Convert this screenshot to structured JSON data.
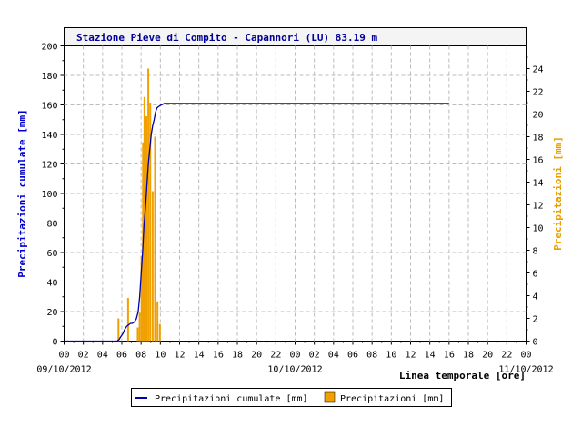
{
  "chart_data": {
    "type": "bar",
    "title": "Stazione Pieve di Compito - Capannori (LU) 83.19 m",
    "xlabel": "Linea temporale [ore]",
    "ylabel_left": "Precipitazioni cumulate [mm]",
    "ylabel_right": "Precipitazioni [mm]",
    "ylim_left": [
      0,
      200
    ],
    "ylim_right": [
      0,
      26
    ],
    "yticks_left": [
      "0",
      "20",
      "40",
      "60",
      "80",
      "100",
      "120",
      "140",
      "160",
      "180",
      "200"
    ],
    "yticks_right": [
      "0",
      "2",
      "4",
      "6",
      "8",
      "10",
      "12",
      "14",
      "16",
      "18",
      "20",
      "22",
      "24"
    ],
    "x_hours_range": [
      0,
      48
    ],
    "xtick_labels": [
      "00",
      "02",
      "04",
      "06",
      "08",
      "10",
      "12",
      "14",
      "16",
      "18",
      "20",
      "22",
      "00",
      "02",
      "04",
      "06",
      "08",
      "10",
      "12",
      "14",
      "16",
      "18",
      "20",
      "22",
      "00"
    ],
    "date_labels": [
      {
        "hour": 0,
        "text": "09/10/2012"
      },
      {
        "hour": 24,
        "text": "10/10/2012"
      },
      {
        "hour": 48,
        "text": "11/10/2012"
      }
    ],
    "grid": true,
    "legend_position": "bottom",
    "series": [
      {
        "name": "Precipitazioni cumulate [mm]",
        "kind": "line",
        "axis": "left",
        "color": "#0000aa",
        "points": [
          [
            0,
            0
          ],
          [
            5.5,
            0
          ],
          [
            5.7,
            1
          ],
          [
            5.9,
            3
          ],
          [
            6.1,
            5
          ],
          [
            6.3,
            8
          ],
          [
            6.5,
            10
          ],
          [
            6.7,
            11
          ],
          [
            6.9,
            12
          ],
          [
            7.1,
            12
          ],
          [
            7.3,
            13
          ],
          [
            7.5,
            15
          ],
          [
            7.7,
            20
          ],
          [
            7.85,
            30
          ],
          [
            8.0,
            45
          ],
          [
            8.15,
            60
          ],
          [
            8.3,
            78
          ],
          [
            8.45,
            90
          ],
          [
            8.6,
            105
          ],
          [
            8.75,
            120
          ],
          [
            8.9,
            130
          ],
          [
            9.05,
            140
          ],
          [
            9.2,
            146
          ],
          [
            9.35,
            150
          ],
          [
            9.5,
            155
          ],
          [
            9.65,
            158
          ],
          [
            9.85,
            159
          ],
          [
            10.1,
            160
          ],
          [
            10.4,
            161
          ],
          [
            11,
            161
          ],
          [
            40,
            161
          ]
        ]
      },
      {
        "name": "Precipitazioni [mm]",
        "kind": "bar",
        "axis": "right",
        "color": "#f0a000",
        "bar_hours": [
          5.65,
          6.65,
          7.65,
          7.85,
          8.05,
          8.2,
          8.35,
          8.55,
          8.75,
          8.95,
          9.2,
          9.45,
          9.7,
          9.95
        ],
        "bar_values": [
          2,
          3.8,
          1.2,
          2.5,
          7.5,
          17.5,
          21.5,
          19.8,
          24,
          21,
          13.2,
          18,
          3.5,
          1.5
        ]
      }
    ]
  },
  "legend": {
    "line_label": "Precipitazioni cumulate [mm]",
    "bar_label": "Precipitazioni [mm]"
  },
  "colors": {
    "line": "#0000aa",
    "bar": "#f0a000",
    "left_axis_label": "#0000cc",
    "right_axis_label": "#e8a000",
    "title": "#000099"
  }
}
